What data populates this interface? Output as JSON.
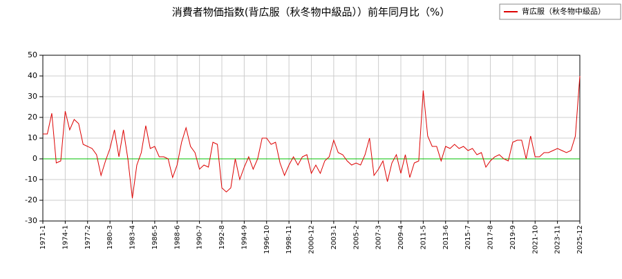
{
  "chart_data": {
    "type": "line",
    "title": "消費者物価指数(背広服（秋冬物中級品））前年同月比（%）",
    "categories": [
      "1971-1",
      null,
      null,
      null,
      null,
      "1974-1",
      null,
      null,
      null,
      null,
      "1977-2",
      null,
      null,
      null,
      null,
      "1980-3",
      null,
      null,
      null,
      null,
      "1983-4",
      null,
      null,
      null,
      null,
      "1986-5",
      null,
      null,
      null,
      null,
      "1988-6",
      null,
      null,
      null,
      null,
      "1990-7",
      null,
      null,
      null,
      null,
      "1992-8",
      null,
      null,
      null,
      null,
      "1994-9",
      null,
      null,
      null,
      null,
      "1996-10",
      null,
      null,
      null,
      null,
      "1998-11",
      null,
      null,
      null,
      null,
      "2000-12",
      null,
      null,
      null,
      null,
      "2003-1",
      null,
      null,
      null,
      null,
      "2005-2",
      null,
      null,
      null,
      null,
      "2007-3",
      null,
      null,
      null,
      null,
      "2009-4",
      null,
      null,
      null,
      null,
      "2011-5",
      null,
      null,
      null,
      null,
      "2013-6",
      null,
      null,
      null,
      null,
      "2015-7",
      null,
      null,
      null,
      null,
      "2017-8",
      null,
      null,
      null,
      null,
      "2019-9",
      null,
      null,
      null,
      null,
      "2021-10",
      null,
      null,
      null,
      null,
      "2023-11",
      null,
      null,
      null,
      null,
      "2025-12"
    ],
    "series": [
      {
        "name": "背広服（秋冬物中級品）",
        "color": "#dd0000",
        "values": [
          12,
          12,
          22,
          -2,
          -1,
          23,
          14,
          19,
          17,
          7,
          6,
          5,
          2,
          -8,
          -1,
          5,
          14,
          1,
          14,
          0,
          -19,
          -3,
          3,
          16,
          5,
          6,
          1,
          1,
          0,
          -9,
          -3,
          8,
          15,
          6,
          3,
          -5,
          -3,
          -4,
          8,
          7,
          -14,
          -16,
          -14,
          0,
          -10,
          -4,
          1,
          -5,
          0,
          10,
          10,
          7,
          8,
          -2,
          -8,
          -3,
          1,
          -3,
          1,
          2,
          -7,
          -3,
          -7,
          -1,
          1,
          9,
          3,
          2,
          -1,
          -3,
          -2,
          -3,
          2,
          10,
          -8,
          -5,
          -1,
          -11,
          -2,
          2,
          -7,
          2,
          -9,
          -2,
          -1,
          33,
          11,
          6,
          6,
          -1,
          6,
          5,
          7,
          5,
          6,
          4,
          5,
          2,
          3,
          -4,
          -1,
          1,
          2,
          0,
          -1,
          8,
          9,
          9,
          0,
          11,
          1,
          1,
          3,
          3,
          4,
          5,
          4,
          3,
          4,
          11,
          40
        ]
      }
    ],
    "ylim": [
      -30,
      50
    ],
    "yticks": [
      -30,
      -20,
      -10,
      0,
      10,
      20,
      30,
      40,
      50
    ],
    "grid": true,
    "legend": "top-right",
    "zero_line_color": "#00c000"
  }
}
